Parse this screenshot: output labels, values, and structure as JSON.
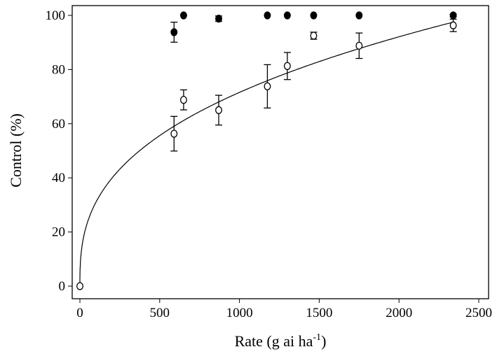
{
  "chart_data": {
    "type": "scatter",
    "xlabel": "Rate (g ai ha",
    "xlabel_sup": "-1",
    "xlabel_close": ")",
    "ylabel": "Control (%)",
    "xlim": [
      -50,
      2560
    ],
    "ylim": [
      -5,
      105
    ],
    "xticks": [
      0,
      500,
      1000,
      1500,
      2000,
      2500
    ],
    "yticks": [
      0,
      20,
      40,
      60,
      80,
      100
    ],
    "grid": false,
    "series": [
      {
        "marker": "filled-circle",
        "points": [
          {
            "x": 590,
            "y": 93.8,
            "err": 3.7
          },
          {
            "x": 650,
            "y": 100,
            "err": 0
          },
          {
            "x": 870,
            "y": 98.8,
            "err": 1.0
          },
          {
            "x": 1175,
            "y": 100,
            "err": 0
          },
          {
            "x": 1300,
            "y": 100,
            "err": 0
          },
          {
            "x": 1465,
            "y": 100,
            "err": 0
          },
          {
            "x": 1750,
            "y": 100,
            "err": 0
          },
          {
            "x": 2340,
            "y": 100,
            "err": 0.5
          }
        ]
      },
      {
        "marker": "open-circle",
        "fit": {
          "model": "power",
          "a": 5.79,
          "b": 0.364
        },
        "points": [
          {
            "x": 0,
            "y": 0,
            "err": 0
          },
          {
            "x": 590,
            "y": 56.3,
            "err": 6.4
          },
          {
            "x": 650,
            "y": 68.8,
            "err": 3.7
          },
          {
            "x": 870,
            "y": 65.0,
            "err": 5.5
          },
          {
            "x": 1175,
            "y": 73.8,
            "err": 8.0
          },
          {
            "x": 1300,
            "y": 81.3,
            "err": 5.0
          },
          {
            "x": 1465,
            "y": 92.5,
            "err": 1.3
          },
          {
            "x": 1750,
            "y": 88.8,
            "err": 4.7
          },
          {
            "x": 2340,
            "y": 96.3,
            "err": 2.3
          }
        ]
      }
    ]
  }
}
